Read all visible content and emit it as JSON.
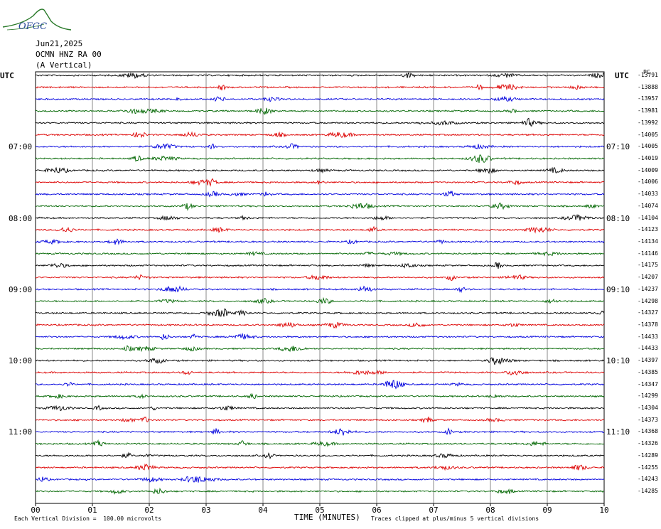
{
  "logo": {
    "text": "OFGC",
    "icon": "observatory-logo-icon",
    "color": "#2a7a2a",
    "text_color": "#2a4a9a"
  },
  "header": {
    "date": "Jun21,2025",
    "station": "OCMN HNZ RA 00",
    "component": "(A Vertical)"
  },
  "utc_left": "UTC",
  "utc_right": "UTC",
  "top_right_unit": "PC",
  "footer": {
    "scale": "Each Vertical Division =  100.00 microvolts",
    "xlabel": "TIME (MINUTES)",
    "clip_note": "Traces clipped at plus/minus 5 vertical divisions"
  },
  "chart_data": {
    "type": "line",
    "title": "",
    "xlabel": "TIME (MINUTES)",
    "ylabel": "",
    "x_ticks": [
      "00",
      "01",
      "02",
      "03",
      "04",
      "05",
      "06",
      "07",
      "08",
      "09",
      "10"
    ],
    "xlim": [
      0,
      10
    ],
    "grid": true,
    "trace_colors": [
      "#000000",
      "#dd0000",
      "#0000dd",
      "#006600"
    ],
    "trace_count": 36,
    "left_hour_labels": [
      {
        "label": "07:00",
        "trace_index": 6
      },
      {
        "label": "08:00",
        "trace_index": 12
      },
      {
        "label": "09:00",
        "trace_index": 18
      },
      {
        "label": "10:00",
        "trace_index": 24
      },
      {
        "label": "11:00",
        "trace_index": 30
      }
    ],
    "right_hour_labels": [
      {
        "label": "07:10",
        "trace_index": 6
      },
      {
        "label": "08:10",
        "trace_index": 12
      },
      {
        "label": "09:10",
        "trace_index": 18
      },
      {
        "label": "10:10",
        "trace_index": 24
      },
      {
        "label": "11:10",
        "trace_index": 30
      }
    ],
    "trace_offsets": [
      "-13791",
      "-13888",
      "-13957",
      "-13981",
      "-13992",
      "-14005",
      "-14005",
      "-14019",
      "-14009",
      "-14006",
      "-14033",
      "-14074",
      "-14104",
      "-14123",
      "-14134",
      "-14146",
      "-14175",
      "-14207",
      "-14237",
      "-14298",
      "-14327",
      "-14378",
      "-14433",
      "-14433",
      "-14397",
      "-14385",
      "-14347",
      "-14299",
      "-14304",
      "-14373",
      "-14368",
      "-14326",
      "-14289",
      "-14255",
      "-14243",
      "-14285"
    ]
  }
}
